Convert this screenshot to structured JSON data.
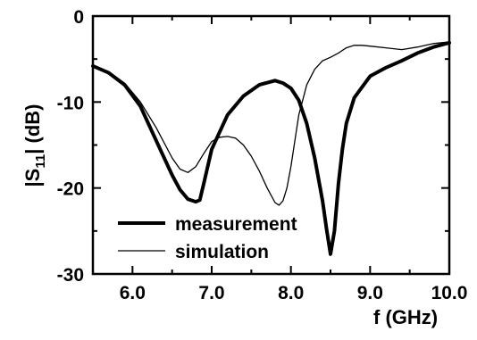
{
  "chart_data": {
    "type": "line",
    "title": "",
    "xlabel": "f (GHz)",
    "ylabel": {
      "prefix": "|S",
      "sub": "11",
      "suffix": "| (dB)"
    },
    "xlim": [
      5.5,
      10.0
    ],
    "ylim": [
      -30,
      0
    ],
    "xticks": [
      6.0,
      7.0,
      8.0,
      9.0,
      10.0
    ],
    "xtick_labels": [
      "6.0",
      "7.0",
      "8.0",
      "9.0",
      "10.0"
    ],
    "yticks": [
      0,
      -10,
      -20,
      -30
    ],
    "ytick_labels": [
      "0",
      "-10",
      "-20",
      "-30"
    ],
    "grid": false,
    "legend_position": "bottom-left",
    "series": [
      {
        "name": "measurement",
        "color": "#000000",
        "style": "thick",
        "x": [
          5.5,
          5.7,
          5.9,
          6.1,
          6.3,
          6.5,
          6.6,
          6.7,
          6.8,
          6.85,
          6.9,
          7.0,
          7.2,
          7.4,
          7.6,
          7.8,
          7.9,
          8.0,
          8.1,
          8.2,
          8.3,
          8.4,
          8.45,
          8.5,
          8.55,
          8.6,
          8.65,
          8.7,
          8.8,
          9.0,
          9.2,
          9.4,
          9.6,
          9.8,
          10.0
        ],
        "y": [
          -5.8,
          -6.6,
          -8.0,
          -10.5,
          -14.5,
          -18.5,
          -20.2,
          -21.3,
          -21.6,
          -21.4,
          -19.5,
          -15.5,
          -11.5,
          -9.3,
          -8.0,
          -7.5,
          -7.8,
          -8.4,
          -9.8,
          -12.5,
          -16.5,
          -21.5,
          -24.8,
          -27.7,
          -25.0,
          -19.5,
          -15.5,
          -12.5,
          -9.5,
          -7.0,
          -6.0,
          -5.2,
          -4.3,
          -3.6,
          -3.1
        ]
      },
      {
        "name": "simulation",
        "color": "#000000",
        "style": "thin",
        "x": [
          5.5,
          5.7,
          5.9,
          6.1,
          6.3,
          6.5,
          6.6,
          6.7,
          6.8,
          6.9,
          7.0,
          7.1,
          7.2,
          7.3,
          7.4,
          7.5,
          7.6,
          7.7,
          7.8,
          7.85,
          7.9,
          7.95,
          8.0,
          8.05,
          8.1,
          8.2,
          8.3,
          8.4,
          8.5,
          8.6,
          8.7,
          8.8,
          8.9,
          9.0,
          9.2,
          9.4,
          9.6,
          9.8,
          10.0
        ],
        "y": [
          -5.8,
          -6.5,
          -7.8,
          -10.0,
          -13.0,
          -16.5,
          -17.8,
          -18.2,
          -17.5,
          -16.0,
          -14.6,
          -14.1,
          -14.0,
          -14.2,
          -15.0,
          -16.3,
          -18.0,
          -20.0,
          -21.7,
          -22.0,
          -21.5,
          -20.0,
          -17.5,
          -14.5,
          -11.5,
          -8.0,
          -6.2,
          -5.2,
          -4.8,
          -4.3,
          -3.7,
          -3.4,
          -3.4,
          -3.5,
          -3.7,
          -3.9,
          -3.6,
          -3.2,
          -3.0
        ]
      }
    ]
  }
}
